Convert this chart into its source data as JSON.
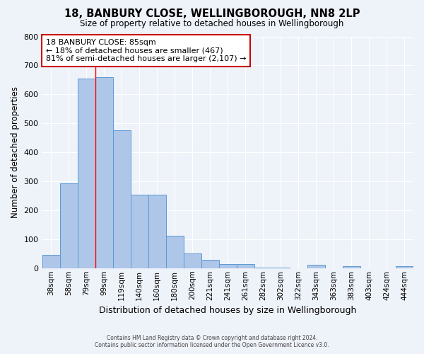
{
  "title1": "18, BANBURY CLOSE, WELLINGBOROUGH, NN8 2LP",
  "title2": "Size of property relative to detached houses in Wellingborough",
  "xlabel": "Distribution of detached houses by size in Wellingborough",
  "ylabel": "Number of detached properties",
  "bin_labels": [
    "38sqm",
    "58sqm",
    "79sqm",
    "99sqm",
    "119sqm",
    "140sqm",
    "160sqm",
    "180sqm",
    "200sqm",
    "221sqm",
    "241sqm",
    "261sqm",
    "282sqm",
    "302sqm",
    "322sqm",
    "343sqm",
    "363sqm",
    "383sqm",
    "403sqm",
    "424sqm",
    "444sqm"
  ],
  "bar_heights": [
    47,
    293,
    655,
    660,
    477,
    253,
    253,
    113,
    50,
    28,
    15,
    15,
    3,
    3,
    0,
    11,
    0,
    7,
    0,
    0,
    7
  ],
  "bar_color": "#aec6e8",
  "bar_edge_color": "#5b9bd5",
  "red_line_x": 2.5,
  "property_label": "18 BANBURY CLOSE: 85sqm",
  "annotation_line1": "← 18% of detached houses are smaller (467)",
  "annotation_line2": "81% of semi-detached houses are larger (2,107) →",
  "annotation_box_color": "#ffffff",
  "annotation_box_edge": "#cc0000",
  "ylim": [
    0,
    800
  ],
  "yticks": [
    0,
    100,
    200,
    300,
    400,
    500,
    600,
    700,
    800
  ],
  "footer1": "Contains HM Land Registry data © Crown copyright and database right 2024.",
  "footer2": "Contains public sector information licensed under the Open Government Licence v3.0.",
  "background_color": "#eef2f9",
  "grid_color": "#ffffff"
}
